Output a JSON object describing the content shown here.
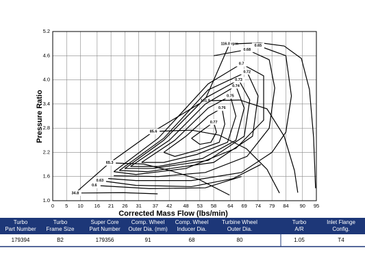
{
  "chart_data": {
    "type": "line",
    "xlabel": "Corrected Mass Flow (lbs/min)",
    "ylabel": "Pressure Ratio",
    "xlim": [
      0,
      95
    ],
    "xticks": [
      0,
      5,
      10,
      16,
      21,
      26,
      31,
      37,
      42,
      48,
      53,
      58,
      64,
      69,
      74,
      79,
      84,
      90,
      95
    ],
    "ylim": [
      1,
      5.2
    ],
    "yticks": [
      {
        "value": 1,
        "label": "1.0"
      },
      1.6,
      2.2,
      2.8,
      3.4,
      {
        "value": 4,
        "label": "4.0"
      },
      4.6,
      5.2
    ],
    "grid": true,
    "color": "#000000",
    "series": [
      {
        "x": [
          8.1,
          20.5,
          36.3,
          54.8,
          63.7
        ],
        "values": [
          1.19,
          1.94,
          2.72,
          3.49,
          4.89
        ]
      },
      {
        "name": "34.8",
        "x": [
          8.1,
          25.4,
          37.8
        ],
        "values": [
          1.19,
          1.2,
          1.17
        ]
      },
      {
        "name": "65.3",
        "x": [
          20.5,
          32.8,
          42.7,
          52.6,
          63.7
        ],
        "values": [
          1.94,
          1.91,
          1.74,
          1.53,
          1.14
        ]
      },
      {
        "name": "85.6",
        "x": [
          36.3,
          50.1,
          59.9,
          69.8,
          77.2,
          81.7
        ],
        "values": [
          2.72,
          2.75,
          2.63,
          2.29,
          1.78,
          1.19
        ]
      },
      {
        "name": "101.9",
        "x": [
          55.0,
          67.4,
          77.2,
          83.4,
          87.1,
          88.3
        ],
        "values": [
          3.48,
          3.5,
          3.28,
          2.6,
          1.75,
          1.2
        ]
      },
      {
        "name": "116.0 rpm",
        "x": [
          63.7,
          74.8,
          83.4,
          89.6,
          92.5,
          94.0,
          94.7
        ],
        "values": [
          4.89,
          4.92,
          4.84,
          4.53,
          3.76,
          2.57,
          1.31
        ]
      },
      {
        "name": "0.77",
        "x": [
          50,
          54,
          58,
          59,
          57,
          53,
          50
        ],
        "values": [
          2.55,
          2.75,
          2.95,
          2.7,
          2.45,
          2.4,
          2.55
        ]
      },
      {
        "name": "0.76",
        "x": [
          40,
          48,
          56,
          61,
          62,
          60,
          52,
          44,
          40
        ],
        "values": [
          2.2,
          2.6,
          3.1,
          3.3,
          2.9,
          2.45,
          2.25,
          2.1,
          2.2
        ]
      },
      {
        "name": "0.75",
        "x": [
          32,
          44,
          56,
          64,
          66,
          63,
          52,
          40,
          32
        ],
        "values": [
          1.95,
          2.5,
          3.3,
          3.6,
          3.1,
          2.45,
          2.15,
          1.95,
          1.95
        ]
      },
      {
        "name": "0.74",
        "x": [
          28,
          42,
          55,
          66,
          69,
          66,
          54,
          38,
          28
        ],
        "values": [
          1.85,
          2.5,
          3.4,
          3.85,
          3.3,
          2.5,
          2.05,
          1.85,
          1.85
        ]
      },
      {
        "name": "0.73",
        "x": [
          26,
          40,
          55,
          67,
          71,
          69,
          56,
          36,
          26
        ],
        "values": [
          1.8,
          2.5,
          3.55,
          4.0,
          3.5,
          2.6,
          2.0,
          1.8,
          1.8
        ]
      },
      {
        "name": "0.72",
        "x": [
          24,
          40,
          56,
          70,
          74,
          72,
          58,
          34,
          24
        ],
        "values": [
          1.75,
          2.55,
          3.75,
          4.2,
          3.6,
          2.6,
          1.95,
          1.72,
          1.75
        ]
      },
      {
        "name": "0.7",
        "x": [
          22,
          38,
          56,
          68,
          76,
          76,
          66,
          48,
          30,
          22
        ],
        "values": [
          1.72,
          2.55,
          3.9,
          4.4,
          4.1,
          3.0,
          2.3,
          1.8,
          1.65,
          1.72
        ]
      },
      {
        "name": "0.68",
        "x": [
          58,
          70,
          78,
          80,
          78,
          70,
          55,
          38,
          22
        ],
        "values": [
          4.6,
          4.75,
          4.5,
          3.8,
          2.8,
          2.1,
          1.7,
          1.6,
          1.62
        ]
      },
      {
        "name": "0.65",
        "x": [
          74,
          84,
          86,
          84,
          79,
          68,
          50,
          30,
          20
        ],
        "values": [
          4.85,
          4.6,
          3.6,
          2.7,
          2.2,
          1.7,
          1.5,
          1.5,
          1.55
        ]
      },
      {
        "name": "0.63",
        "x": [
          17,
          30,
          50,
          65,
          75
        ],
        "values": [
          1.5,
          1.38,
          1.35,
          1.55,
          1.9
        ]
      },
      {
        "name": "0.6",
        "x": [
          15,
          35,
          55,
          68
        ],
        "values": [
          1.38,
          1.3,
          1.32,
          1.6
        ]
      }
    ]
  },
  "table": {
    "headers": [
      [
        "Turbo",
        "Part Number"
      ],
      [
        "Turbo",
        "Frame Size"
      ],
      [
        "Super Core",
        "Part Number"
      ],
      [
        "Comp. Wheel",
        "Outer Dia. (mm)"
      ],
      [
        "Comp. Wheel",
        "Inducer Dia."
      ],
      [
        "Turbine Wheel",
        "Outer Dia."
      ],
      [
        "Turbo",
        "A/R"
      ],
      [
        "Inlet Flange",
        "Config."
      ]
    ],
    "rows": [
      [
        "179394",
        "B2",
        "179356",
        "91",
        "68",
        "80",
        "1.05",
        "T4"
      ]
    ]
  }
}
